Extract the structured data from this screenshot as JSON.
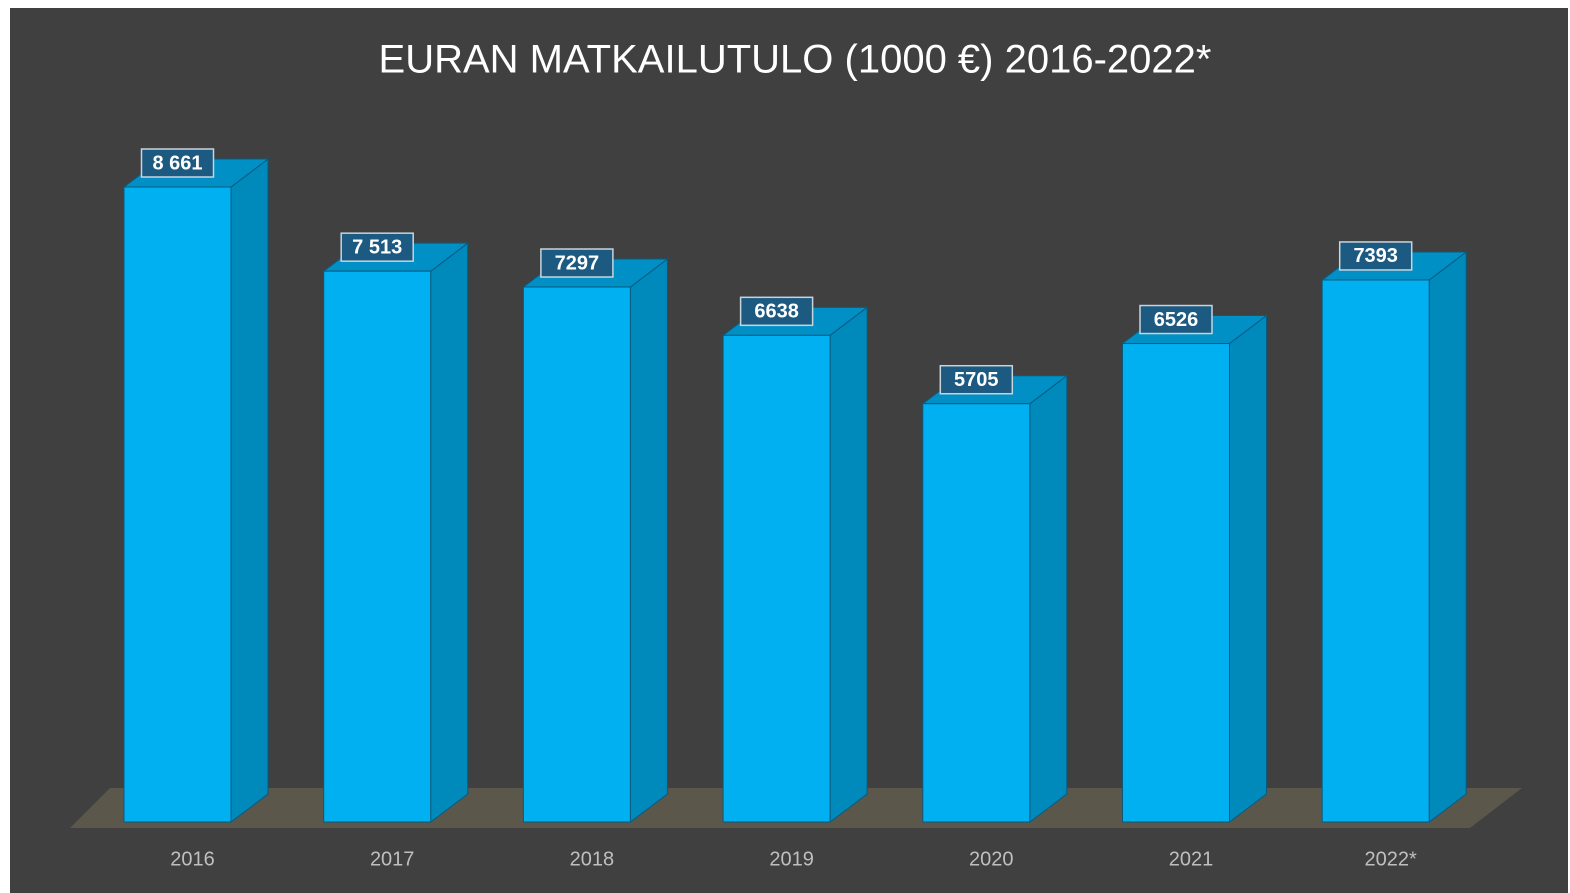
{
  "chart_data": {
    "type": "bar3d",
    "title": "EURAN MATKAILUTULO (1000 €) 2016-2022*",
    "categories": [
      "2016",
      "2017",
      "2018",
      "2019",
      "2020",
      "2021",
      "2022*"
    ],
    "values": [
      8661,
      7513,
      7297,
      6638,
      5705,
      6526,
      7393
    ],
    "value_labels": [
      "8 661",
      "7 513",
      "7297",
      "6638",
      "5705",
      "6526",
      "7393"
    ],
    "color": "#00b0f0"
  }
}
